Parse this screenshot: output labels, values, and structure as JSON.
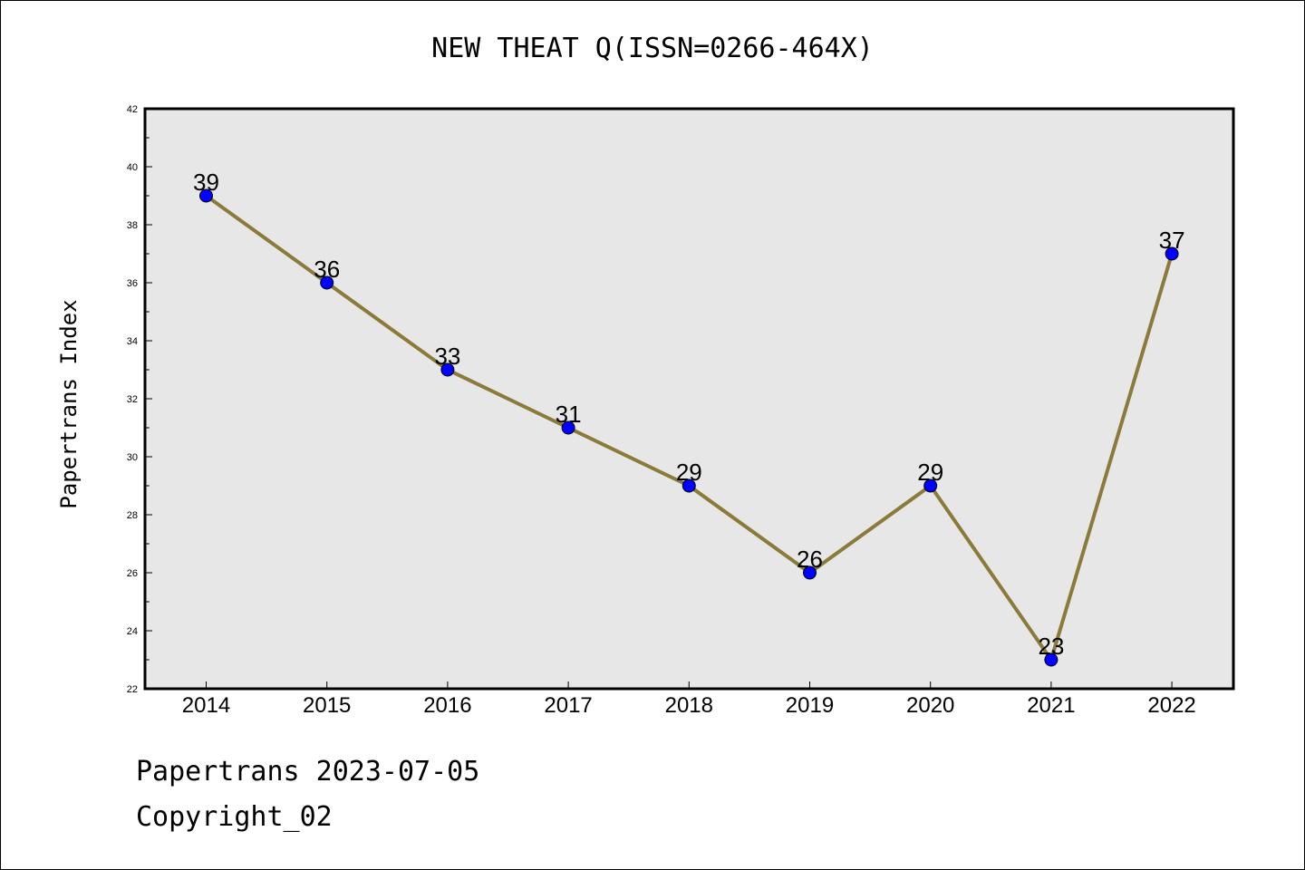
{
  "chart_data": {
    "type": "line",
    "title": "NEW THEAT Q(ISSN=0266-464X)",
    "xlabel": "",
    "ylabel": "Papertrans Index",
    "x": [
      "2014",
      "2015",
      "2016",
      "2017",
      "2018",
      "2019",
      "2020",
      "2021",
      "2022"
    ],
    "series": [
      {
        "values": [
          39,
          36,
          33,
          31,
          29,
          26,
          29,
          23,
          37
        ]
      }
    ],
    "data_labels": [
      "39",
      "36",
      "33",
      "31",
      "29",
      "26",
      "29",
      "23",
      "37"
    ],
    "ylim": [
      22,
      42
    ],
    "yticks": [
      "22",
      "24",
      "26",
      "28",
      "30",
      "32",
      "34",
      "36",
      "38",
      "40",
      "42"
    ],
    "grid": false,
    "line_color": "#8b7a3a",
    "marker_color": "#0000ff",
    "plot_background": "#e7e7e7"
  },
  "footer": {
    "line1": "Papertrans 2023-07-05",
    "line2": "Copyright_02"
  }
}
